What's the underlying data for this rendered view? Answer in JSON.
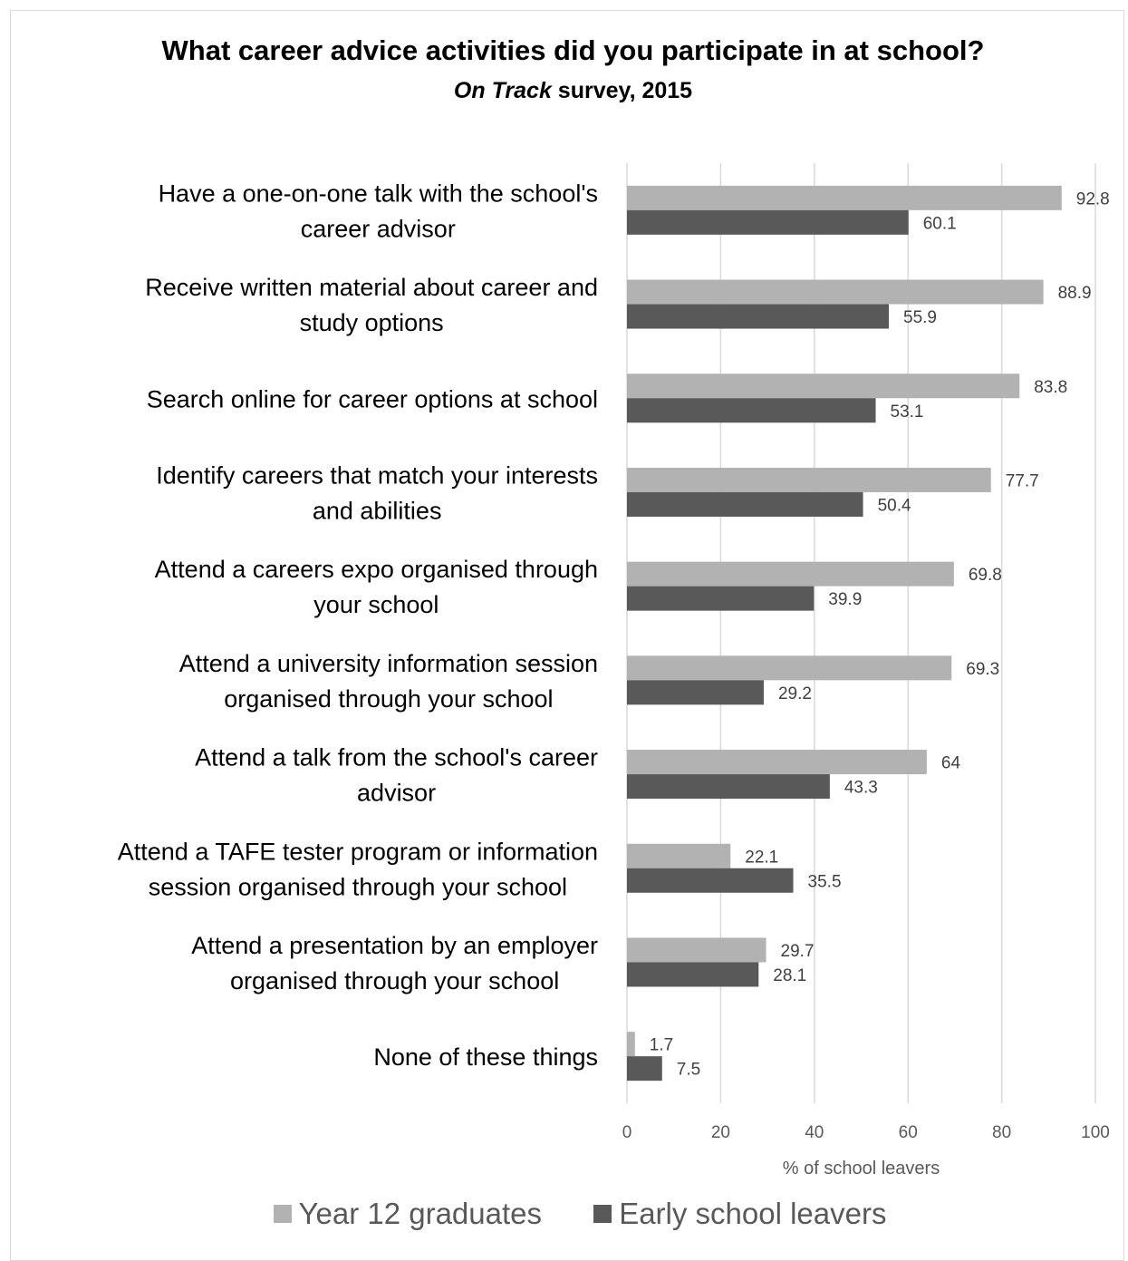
{
  "title": "What career advice activities did you participate in at school?",
  "subtitle": {
    "italic_part": "On Track",
    "rest": " survey, 2015"
  },
  "chart_data": {
    "type": "bar",
    "orientation": "horizontal",
    "categories": [
      [
        "Have a one-on-one talk with the school's",
        "career advisor"
      ],
      [
        "Receive written material about career and",
        "study options"
      ],
      [
        "Search online for career options at school"
      ],
      [
        "Identify careers that match your interests",
        "and abilities"
      ],
      [
        "Attend a careers expo organised through",
        "your school"
      ],
      [
        "Attend a university information session",
        "organised through your school"
      ],
      [
        "Attend a talk from the school's career",
        "advisor"
      ],
      [
        "Attend a TAFE tester program or information",
        "session organised through your school"
      ],
      [
        "Attend a presentation by an employer",
        "organised through your school"
      ],
      [
        "None of these things"
      ]
    ],
    "series": [
      {
        "name": "Year 12 graduates",
        "color": "#b2b2b2",
        "values": [
          92.8,
          88.9,
          83.8,
          77.7,
          69.8,
          69.3,
          64,
          22.1,
          29.7,
          1.7
        ]
      },
      {
        "name": "Early school leavers",
        "color": "#595959",
        "values": [
          60.1,
          55.9,
          53.1,
          50.4,
          39.9,
          29.2,
          43.3,
          35.5,
          28.1,
          7.5
        ]
      }
    ],
    "xlabel": "% of school leavers",
    "ylabel": "",
    "xlim": [
      0,
      100
    ],
    "xticks": [
      0,
      20,
      40,
      60,
      80,
      100
    ],
    "grid": "vertical",
    "legend_position": "bottom"
  }
}
